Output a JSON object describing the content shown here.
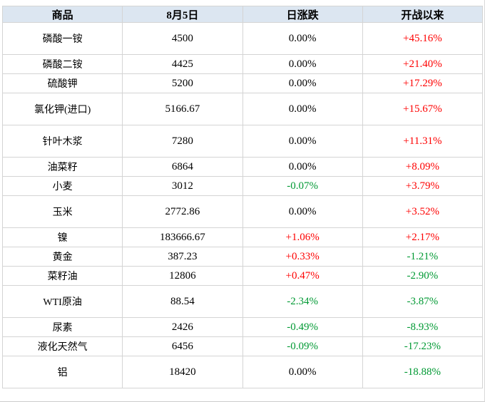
{
  "chart_data": {
    "type": "table",
    "title": "",
    "columns": [
      "商品",
      "8月5日",
      "日涨跌",
      "开战以来"
    ],
    "rows": [
      {
        "name": "磷酸一铵",
        "price": "4500",
        "day_change": "0.00%",
        "since_war": "+45.16%"
      },
      {
        "name": "磷酸二铵",
        "price": "4425",
        "day_change": "0.00%",
        "since_war": "+21.40%"
      },
      {
        "name": "硫酸钾",
        "price": "5200",
        "day_change": "0.00%",
        "since_war": "+17.29%"
      },
      {
        "name": "氯化钾(进口)",
        "price": "5166.67",
        "day_change": "0.00%",
        "since_war": "+15.67%"
      },
      {
        "name": "针叶木浆",
        "price": "7280",
        "day_change": "0.00%",
        "since_war": "+11.31%"
      },
      {
        "name": "油菜籽",
        "price": "6864",
        "day_change": "0.00%",
        "since_war": "+8.09%"
      },
      {
        "name": "小麦",
        "price": "3012",
        "day_change": "-0.07%",
        "since_war": "+3.79%"
      },
      {
        "name": "玉米",
        "price": "2772.86",
        "day_change": "0.00%",
        "since_war": "+3.52%"
      },
      {
        "name": "镍",
        "price": "183666.67",
        "day_change": "+1.06%",
        "since_war": "+2.17%"
      },
      {
        "name": "黄金",
        "price": "387.23",
        "day_change": "+0.33%",
        "since_war": "-1.21%"
      },
      {
        "name": "菜籽油",
        "price": "12806",
        "day_change": "+0.47%",
        "since_war": "-2.90%"
      },
      {
        "name": "WTI原油",
        "price": "88.54",
        "day_change": "-2.34%",
        "since_war": "-3.87%"
      },
      {
        "name": "尿素",
        "price": "2426",
        "day_change": "-0.49%",
        "since_war": "-8.93%"
      },
      {
        "name": "液化天然气",
        "price": "6456",
        "day_change": "-0.09%",
        "since_war": "-17.23%"
      },
      {
        "name": "铝",
        "price": "18420",
        "day_change": "0.00%",
        "since_war": "-18.88%"
      }
    ]
  },
  "colors": {
    "up": "#fe0000",
    "down": "#009933",
    "neutral": "#000000",
    "header_bg": "#dce6f1",
    "border": "#d4d4d4"
  }
}
